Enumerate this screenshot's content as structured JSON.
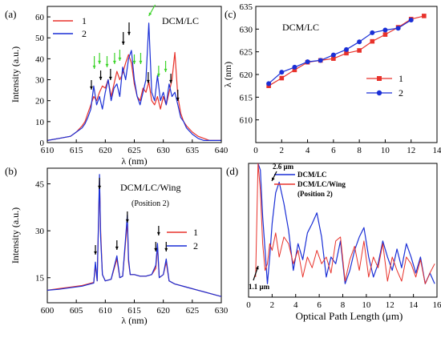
{
  "colors": {
    "s1": "#e8322b",
    "s2": "#1a2fd6",
    "arrow_black": "#000000",
    "arrow_green": "#3dd42a"
  },
  "chart_data": [
    {
      "panel_label": "(a)",
      "type": "line",
      "annotation": "DCM/LC",
      "xlabel": "λ (nm)",
      "ylabel": "Intensity (a.u.)",
      "xlim": [
        610,
        640
      ],
      "ylim": [
        0,
        65
      ],
      "xticks": [
        "610",
        "615",
        "620",
        "625",
        "630",
        "635",
        "640"
      ],
      "yticks": [
        "0",
        "10",
        "20",
        "30",
        "40",
        "50",
        "60"
      ],
      "legend": {
        "position": "top-left",
        "entries": [
          "1",
          "2"
        ]
      },
      "series": [
        {
          "name": "1",
          "color": "#e8322b",
          "x": [
            610,
            612,
            614,
            615,
            616,
            616.5,
            617,
            617.5,
            618,
            618.5,
            619,
            619.5,
            620,
            620.5,
            621,
            621.5,
            622,
            622.5,
            623,
            623.5,
            624,
            624.5,
            625,
            625.5,
            626,
            626.5,
            627,
            627.5,
            628,
            628.5,
            629,
            629.5,
            630,
            630.5,
            631,
            631.5,
            632,
            632.5,
            633,
            633.5,
            634,
            635,
            636,
            637,
            638,
            640
          ],
          "y": [
            1,
            2,
            3,
            5,
            8,
            10,
            14,
            18,
            22,
            20,
            24,
            27,
            26,
            30,
            22,
            28,
            34,
            30,
            33,
            38,
            42,
            38,
            28,
            22,
            20,
            26,
            24,
            29,
            20,
            18,
            22,
            16,
            22,
            18,
            24,
            30,
            43,
            22,
            14,
            10,
            8,
            5,
            3,
            2,
            1,
            1
          ]
        },
        {
          "name": "2",
          "color": "#1a2fd6",
          "x": [
            610,
            612,
            614,
            615,
            616,
            616.5,
            617,
            617.5,
            618,
            618.5,
            619,
            619.5,
            620,
            620.5,
            621,
            621.5,
            622,
            622.5,
            623,
            623.5,
            624,
            624.5,
            625,
            625.5,
            626,
            626.5,
            627,
            627.5,
            628,
            628.5,
            629,
            629.5,
            630,
            630.5,
            631,
            631.5,
            632,
            632.5,
            633,
            633.5,
            634,
            635,
            636,
            637,
            638,
            640
          ],
          "y": [
            1,
            2,
            3,
            5,
            7,
            9,
            12,
            16,
            27,
            18,
            22,
            16,
            24,
            30,
            20,
            26,
            28,
            22,
            36,
            30,
            40,
            44,
            30,
            22,
            18,
            24,
            30,
            57,
            24,
            20,
            32,
            20,
            24,
            18,
            28,
            22,
            24,
            18,
            12,
            10,
            7,
            4,
            2,
            1,
            1,
            1
          ]
        }
      ]
    },
    {
      "panel_label": "(b)",
      "type": "line",
      "annotation": "DCM/LC/Wing",
      "annotation2": "(Position 2)",
      "xlabel": "λ (nm)",
      "ylabel": "Intensity (a.u.)",
      "xlim": [
        600,
        630
      ],
      "ylim": [
        7,
        50
      ],
      "xticks": [
        "600",
        "605",
        "610",
        "615",
        "620",
        "625",
        "630"
      ],
      "yticks": [
        "15",
        "30",
        "45"
      ],
      "legend": {
        "position": "bottom-right",
        "entries": [
          "1",
          "2"
        ]
      },
      "series": [
        {
          "name": "1",
          "color": "#e8322b",
          "x": [
            600,
            602,
            604,
            606,
            607,
            608,
            608.3,
            608.6,
            609,
            609.2,
            609.5,
            610,
            611,
            612,
            612.5,
            613,
            613.8,
            614,
            614.3,
            615,
            616,
            617,
            618,
            618.7,
            619,
            619.3,
            620,
            620.5,
            621,
            622,
            624,
            626,
            628,
            630
          ],
          "y": [
            11,
            11.5,
            12,
            12.5,
            13,
            13.5,
            19,
            14,
            46,
            30,
            16,
            14,
            14.5,
            21,
            15,
            15.5,
            33,
            20,
            16,
            16,
            15.5,
            15.5,
            16,
            18,
            25,
            15,
            16,
            20,
            14,
            13,
            12,
            11,
            10,
            9
          ]
        },
        {
          "name": "2",
          "color": "#1a2fd6",
          "x": [
            600,
            602,
            604,
            606,
            607,
            608,
            608.3,
            608.6,
            609,
            609.2,
            609.5,
            610,
            611,
            612,
            612.5,
            613,
            613.8,
            614,
            614.3,
            615,
            616,
            617,
            618,
            618.7,
            619,
            619.3,
            620,
            620.5,
            621,
            622,
            624,
            626,
            628,
            630
          ],
          "y": [
            11,
            11.3,
            11.8,
            12.3,
            12.8,
            13.3,
            20,
            14,
            48,
            28,
            16,
            14,
            14.5,
            22,
            15,
            15.5,
            35,
            21,
            16,
            16,
            15.5,
            15.5,
            16,
            19,
            26,
            15,
            16,
            21,
            14,
            13,
            12,
            11,
            10,
            9
          ]
        }
      ]
    },
    {
      "panel_label": "(c)",
      "type": "line",
      "annotation": "DCM/LC",
      "xlabel": "",
      "ylabel": "λ (nm)",
      "xlim": [
        0,
        14
      ],
      "ylim": [
        605,
        635
      ],
      "xticks": [
        "0",
        "2",
        "4",
        "6",
        "8",
        "10",
        "12",
        "14"
      ],
      "yticks": [
        "610",
        "615",
        "620",
        "625",
        "630",
        "635"
      ],
      "legend": {
        "position": "bottom-right",
        "entries": [
          "1",
          "2"
        ]
      },
      "series": [
        {
          "name": "1",
          "color": "#e8322b",
          "marker": "square",
          "x": [
            1,
            2,
            3,
            4,
            5,
            6,
            7,
            8,
            9,
            10,
            11,
            12,
            13
          ],
          "y": [
            617.5,
            619.2,
            621.0,
            622.7,
            623.1,
            623.5,
            624.7,
            625.3,
            627.3,
            628.8,
            630.4,
            632.2,
            632.9
          ]
        },
        {
          "name": "2",
          "color": "#1a2fd6",
          "marker": "circle",
          "x": [
            1,
            2,
            3,
            4,
            5,
            6,
            7,
            8,
            9,
            10,
            11,
            12
          ],
          "y": [
            618.0,
            620.5,
            621.6,
            622.8,
            623.1,
            624.3,
            625.5,
            627.2,
            629.2,
            629.8,
            630.2,
            632.0
          ]
        }
      ]
    },
    {
      "panel_label": "(d)",
      "type": "line",
      "xlabel": "Optical Path Length (μm)",
      "ylabel": "",
      "xlim": [
        0,
        16
      ],
      "ylim": [
        0,
        1
      ],
      "xticks": [
        "0",
        "2",
        "4",
        "6",
        "8",
        "10",
        "12",
        "14",
        "16"
      ],
      "annotations": [
        "2.6 μm",
        "1.1 μm"
      ],
      "legend": {
        "position": "top-left",
        "entries": [
          "DCM/LC",
          "DCM/LC/Wing",
          "(Position 2)"
        ]
      },
      "series": [
        {
          "name": "DCM/LC",
          "color": "#1a2fd6",
          "x": [
            0.8,
            1.0,
            1.2,
            1.4,
            1.6,
            1.8,
            2.0,
            2.3,
            2.6,
            3.0,
            3.4,
            3.8,
            4.2,
            4.6,
            5.0,
            5.4,
            5.8,
            6.2,
            6.6,
            7.0,
            7.4,
            7.8,
            8.2,
            8.6,
            9.0,
            9.4,
            9.8,
            10.2,
            10.6,
            11.0,
            11.4,
            11.8,
            12.2,
            12.6,
            13.0,
            13.4,
            13.8,
            14.2,
            14.6,
            15.0,
            15.4,
            15.8
          ],
          "y": [
            1.0,
            0.95,
            0.6,
            0.35,
            0.1,
            0.3,
            0.55,
            0.78,
            0.86,
            0.7,
            0.5,
            0.2,
            0.4,
            0.28,
            0.48,
            0.55,
            0.63,
            0.45,
            0.15,
            0.3,
            0.25,
            0.42,
            0.1,
            0.2,
            0.35,
            0.45,
            0.52,
            0.3,
            0.15,
            0.25,
            0.42,
            0.3,
            0.2,
            0.36,
            0.22,
            0.4,
            0.3,
            0.18,
            0.3,
            0.1,
            0.18,
            0.1
          ]
        },
        {
          "name": "DCM/LC/Wing",
          "color": "#e8322b",
          "x": [
            0.6,
            0.8,
            1.0,
            1.2,
            1.4,
            1.6,
            1.8,
            2.0,
            2.3,
            2.6,
            3.0,
            3.4,
            3.8,
            4.2,
            4.6,
            5.0,
            5.4,
            5.8,
            6.2,
            6.6,
            7.0,
            7.4,
            7.8,
            8.2,
            8.6,
            9.0,
            9.4,
            9.8,
            10.2,
            10.6,
            11.0,
            11.4,
            11.8,
            12.2,
            12.6,
            13.0,
            13.4,
            13.8,
            14.2,
            14.6,
            15.0,
            15.4,
            15.8
          ],
          "y": [
            0.15,
            1.0,
            0.8,
            0.4,
            0.2,
            0.25,
            0.4,
            0.35,
            0.48,
            0.3,
            0.45,
            0.4,
            0.25,
            0.35,
            0.15,
            0.3,
            0.22,
            0.35,
            0.25,
            0.3,
            0.18,
            0.42,
            0.45,
            0.12,
            0.28,
            0.38,
            0.2,
            0.42,
            0.15,
            0.3,
            0.22,
            0.4,
            0.12,
            0.3,
            0.2,
            0.12,
            0.3,
            0.25,
            0.15,
            0.28,
            0.1,
            0.18,
            0.25
          ]
        }
      ]
    }
  ]
}
